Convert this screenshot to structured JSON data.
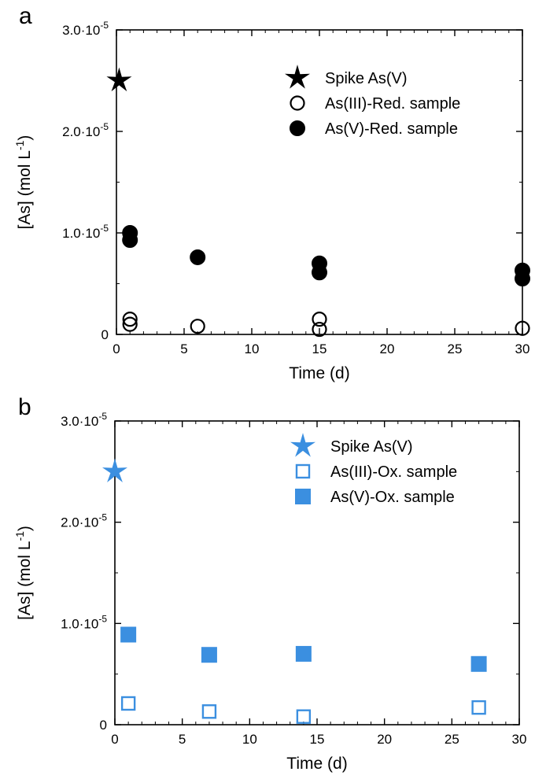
{
  "chart_data": [
    {
      "type": "scatter",
      "panel_label": "a",
      "xlabel": "Time (d)",
      "ylabel_main": "[As] (mol L",
      "ylabel_sup": "-1",
      "ylabel_tail": ")",
      "xlim": [
        0,
        30
      ],
      "ylim": [
        0,
        3e-05
      ],
      "x_ticks": [
        "0",
        "5",
        "10",
        "15",
        "20",
        "25",
        "30"
      ],
      "y_ticks": [
        {
          "value": 0,
          "mant": "0",
          "exp": ""
        },
        {
          "value": 1e-05,
          "mant": "1.0·10",
          "exp": "-5"
        },
        {
          "value": 2e-05,
          "mant": "2.0·10",
          "exp": "-5"
        },
        {
          "value": 3e-05,
          "mant": "3.0·10",
          "exp": "-5"
        }
      ],
      "grid": false,
      "legend_position": "top-right",
      "color": "#000000",
      "series": [
        {
          "name": "Spike As(V)",
          "marker": "star",
          "filled": true,
          "points": [
            {
              "x": 0.2,
              "y": 2.5e-05
            }
          ]
        },
        {
          "name": "As(III)-Red. sample",
          "marker": "circle",
          "filled": false,
          "points": [
            {
              "x": 1,
              "y": 1.5e-06
            },
            {
              "x": 1,
              "y": 1e-06
            },
            {
              "x": 6,
              "y": 8e-07
            },
            {
              "x": 15,
              "y": 1.5e-06
            },
            {
              "x": 15,
              "y": 5e-07
            },
            {
              "x": 30,
              "y": 6e-07
            }
          ]
        },
        {
          "name": "As(V)-Red. sample",
          "marker": "circle",
          "filled": true,
          "points": [
            {
              "x": 1,
              "y": 1e-05
            },
            {
              "x": 1,
              "y": 9.3e-06
            },
            {
              "x": 6,
              "y": 7.6e-06
            },
            {
              "x": 15,
              "y": 7e-06
            },
            {
              "x": 15,
              "y": 6.1e-06
            },
            {
              "x": 30,
              "y": 6.3e-06
            },
            {
              "x": 30,
              "y": 5.5e-06
            }
          ]
        }
      ]
    },
    {
      "type": "scatter",
      "panel_label": "b",
      "xlabel": "Time (d)",
      "ylabel_main": "[As] (mol L",
      "ylabel_sup": "-1",
      "ylabel_tail": ")",
      "xlim": [
        0,
        30
      ],
      "ylim": [
        0,
        3e-05
      ],
      "x_ticks": [
        "0",
        "5",
        "10",
        "15",
        "20",
        "25",
        "30"
      ],
      "y_ticks": [
        {
          "value": 0,
          "mant": "0",
          "exp": ""
        },
        {
          "value": 1e-05,
          "mant": "1.0·10",
          "exp": "-5"
        },
        {
          "value": 2e-05,
          "mant": "2.0·10",
          "exp": "-5"
        },
        {
          "value": 3e-05,
          "mant": "3.0·10",
          "exp": "-5"
        }
      ],
      "grid": false,
      "legend_position": "top-right",
      "color": "#3b8fe0",
      "series": [
        {
          "name": "Spike As(V)",
          "marker": "star",
          "filled": true,
          "points": [
            {
              "x": 0,
              "y": 2.5e-05
            }
          ]
        },
        {
          "name": "As(III)-Ox. sample",
          "marker": "square",
          "filled": false,
          "points": [
            {
              "x": 1,
              "y": 2.1e-06
            },
            {
              "x": 7,
              "y": 1.3e-06
            },
            {
              "x": 14,
              "y": 8e-07
            },
            {
              "x": 27,
              "y": 1.7e-06
            }
          ]
        },
        {
          "name": "As(V)-Ox. sample",
          "marker": "square",
          "filled": true,
          "points": [
            {
              "x": 1,
              "y": 8.9e-06
            },
            {
              "x": 7,
              "y": 6.9e-06
            },
            {
              "x": 14,
              "y": 7e-06
            },
            {
              "x": 27,
              "y": 6e-06
            }
          ]
        }
      ]
    }
  ]
}
